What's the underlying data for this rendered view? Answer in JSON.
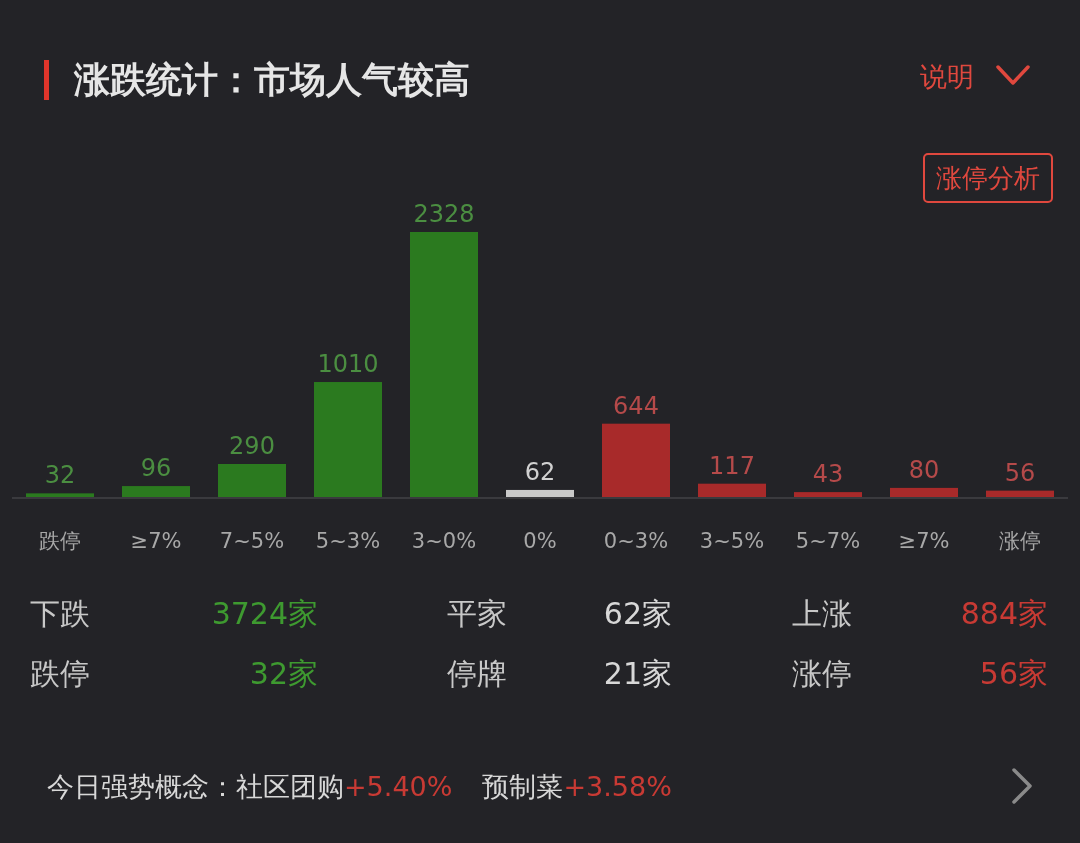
{
  "chart_data": {
    "type": "bar",
    "title": "涨跌统计：市场人气较高",
    "categories": [
      "跌停",
      "≥7%",
      "7~5%",
      "5~3%",
      "3~0%",
      "0%",
      "0~3%",
      "3~5%",
      "5~7%",
      "≥7%",
      "涨停"
    ],
    "values": [
      32,
      96,
      290,
      1010,
      2328,
      62,
      644,
      117,
      43,
      80,
      56
    ],
    "colors": [
      "#2b7a1f",
      "#2b7a1f",
      "#2b7a1f",
      "#2b7a1f",
      "#2b7a1f",
      "#c9c9c9",
      "#a82a2a",
      "#a82a2a",
      "#a82a2a",
      "#a82a2a",
      "#a82a2a"
    ],
    "data_labels": true,
    "annotations": [
      "说明",
      "涨停分析",
      "下跌",
      "3724家",
      "平家",
      "62家",
      "上涨",
      "884家",
      "跌停",
      "32家",
      "停牌",
      "21家",
      "涨停",
      "56家",
      "今日强势概念：社区团购",
      "+5.40%",
      "预制菜",
      "+3.58%"
    ]
  }
}
